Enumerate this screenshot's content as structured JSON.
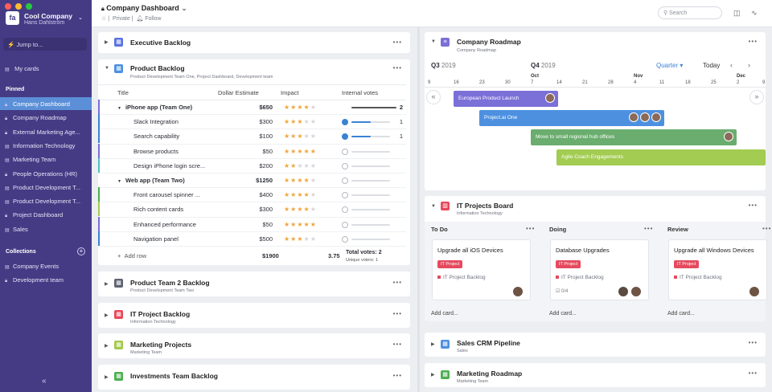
{
  "sidebar": {
    "company_name": "Cool Company",
    "user_name": "Hans Dahlström",
    "logo_text": "fa",
    "jump_label": "Jump to...",
    "my_cards_label": "My cards",
    "pinned_header": "Pinned",
    "pinned": [
      {
        "label": "Company Dashboard",
        "icon": "lock-icon",
        "active": true
      },
      {
        "label": "Company Roadmap",
        "icon": "lock-icon"
      },
      {
        "label": "External Marketing Age...",
        "icon": "lock-icon"
      },
      {
        "label": "Information Technology",
        "icon": "board-icon"
      },
      {
        "label": "Marketing Team",
        "icon": "board-icon"
      },
      {
        "label": "People Operations (HR)",
        "icon": "lock-icon"
      },
      {
        "label": "Product Development T...",
        "icon": "board-icon"
      },
      {
        "label": "Product Development T...",
        "icon": "board-icon"
      },
      {
        "label": "Project Dashboard",
        "icon": "lock-icon"
      },
      {
        "label": "Sales",
        "icon": "board-icon"
      }
    ],
    "collections_header": "Collections",
    "collections": [
      {
        "label": "Company Events",
        "icon": "board-icon"
      },
      {
        "label": "Development team",
        "icon": "lock-icon"
      }
    ],
    "collapse_label": "«"
  },
  "topbar": {
    "title": "Company Dashboard",
    "privacy": "Private",
    "follow": "Follow",
    "search_placeholder": "Search"
  },
  "backlog": {
    "title": "Executive Backlog",
    "product": {
      "title": "Product Backlog",
      "subtitle": "Product Development Team One, Project Dashboard, Development team",
      "columns": [
        "Title",
        "Dollar Estimate",
        "Impact",
        "Internal votes"
      ],
      "rows": [
        {
          "title": "iPhone app (Team One)",
          "group": true,
          "estimate": "$650",
          "stars": 4,
          "votes": "2",
          "vote_fill": 1.0,
          "voted": false,
          "dark": true
        },
        {
          "title": "Slack Integration",
          "estimate": "$300",
          "stars": 3,
          "votes": "1",
          "vote_fill": 0.5,
          "voted": true
        },
        {
          "title": "Search capability",
          "estimate": "$100",
          "stars": 3,
          "votes": "1",
          "vote_fill": 0.5,
          "voted": true
        },
        {
          "title": "Browse products",
          "estimate": "$50",
          "stars": 5,
          "votes": "",
          "vote_fill": 0,
          "voted": false
        },
        {
          "title": "Design iPhone login scre...",
          "estimate": "$200",
          "stars": 2,
          "votes": "",
          "vote_fill": 0,
          "voted": false
        },
        {
          "title": "Web app (Team Two)",
          "group": true,
          "estimate": "$1250",
          "stars": 4,
          "votes": "",
          "vote_fill": 0,
          "voted": false
        },
        {
          "title": "Front carousel spinner ...",
          "estimate": "$400",
          "stars": 4,
          "votes": "",
          "vote_fill": 0,
          "voted": false
        },
        {
          "title": "Rich content cards",
          "estimate": "$300",
          "stars": 4,
          "votes": "",
          "vote_fill": 0,
          "voted": false
        },
        {
          "title": "Enhanced performance",
          "estimate": "$50",
          "stars": 5,
          "votes": "",
          "vote_fill": 0,
          "voted": false
        },
        {
          "title": "Navigation panel",
          "estimate": "$500",
          "stars": 3,
          "votes": "",
          "vote_fill": 0,
          "voted": false
        }
      ],
      "add_row": "Add row",
      "total_estimate": "$1900",
      "total_impact": "3.75",
      "total_votes": "Total votes: 2",
      "unique_voters": "Unique voters: 1"
    },
    "others": [
      {
        "title": "Product Team 2 Backlog",
        "subtitle": "Product Development Team Two",
        "color": "#5f6270"
      },
      {
        "title": "IT Project Backlog",
        "subtitle": "Information Technology",
        "color": "#e8475a"
      },
      {
        "title": "Marketing Projects",
        "subtitle": "Marketing Team",
        "color": "#a3c94a"
      },
      {
        "title": "Investments Team Backlog",
        "subtitle": "",
        "color": "#4caf50"
      }
    ]
  },
  "roadmap": {
    "title": "Company Roadmap",
    "subtitle": "Company Roadmap",
    "q_left": "Q3",
    "q_left_year": "2019",
    "q_right": "Q4",
    "q_right_year": "2019",
    "zoom": "Quarter",
    "today": "Today",
    "months": [
      {
        "label": "Oct"
      },
      {
        "label": "Nov"
      },
      {
        "label": "Dec"
      }
    ],
    "days": [
      "9",
      "16",
      "23",
      "30",
      "7",
      "14",
      "21",
      "28",
      "4",
      "11",
      "18",
      "25",
      "2",
      "9"
    ],
    "bars": [
      {
        "label": "European Product Launch",
        "color": "#7b6fd8"
      },
      {
        "label": "Project.ai One",
        "color": "#4d90e0"
      },
      {
        "label": "Move to small regional hub offices",
        "color": "#6aad6e"
      },
      {
        "label": "Agile Coach Engagements",
        "color": "#a3cc52"
      }
    ]
  },
  "it_board": {
    "title": "IT Projects Board",
    "subtitle": "Information Technology",
    "columns": [
      {
        "name": "To Do",
        "card": "Upgrade all iOS Devices",
        "tag": "IT Project",
        "project": "IT Project Backlog",
        "checklist": "",
        "add": "Add card..."
      },
      {
        "name": "Doing",
        "card": "Database Upgrades",
        "tag": "IT Project",
        "project": "IT Project Backlog",
        "checklist": "0/4",
        "add": "Add card..."
      },
      {
        "name": "Review",
        "card": "Upgrade all Windows Devices",
        "tag": "IT Project",
        "project": "IT Project Backlog",
        "checklist": "",
        "add": "Add card..."
      }
    ]
  },
  "right_others": [
    {
      "title": "Sales CRM Pipeline",
      "subtitle": "Sales",
      "color": "#4d90e0"
    },
    {
      "title": "Marketing Roadmap",
      "subtitle": "Marketing Team",
      "color": "#4caf50"
    }
  ]
}
